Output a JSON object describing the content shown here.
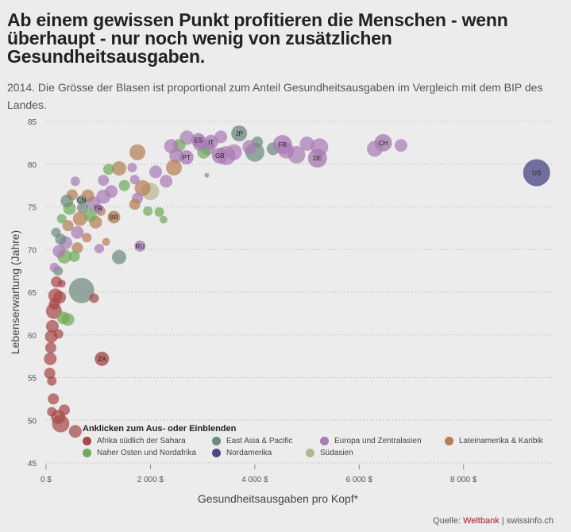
{
  "title": "Ab einem gewissen Punkt profitieren die Menschen - wenn überhaupt - nur noch wenig von zusätzlichen Gesundheitsausgaben.",
  "subtitle": "2014. Die Grösse der Blasen ist proportional zum Anteil Gesundheitsausgaben im Vergleich mit dem BIP des Landes.",
  "source": {
    "prefix": "Quelle: ",
    "bank": "Weltbank",
    "sep": " | ",
    "site": "swissinfo.ch"
  },
  "legend": {
    "title": "Anklicken zum Aus- oder Einblenden",
    "items": [
      {
        "label": "Afrika südlich der Sahara",
        "color": "#a84848"
      },
      {
        "label": "East Asia & Pacific",
        "color": "#6f8a80"
      },
      {
        "label": "Europa und Zentralasien",
        "color": "#a97cb4"
      },
      {
        "label": "Lateinamerika & Karibik",
        "color": "#b47f55"
      },
      {
        "label": "Naher Osten und Nordafrika",
        "color": "#6fab5a"
      },
      {
        "label": "Nordamerika",
        "color": "#4c4a86"
      },
      {
        "label": "Südasien",
        "color": "#b8b690"
      }
    ]
  },
  "chart_data": {
    "type": "scatter",
    "xlabel": "Gesundheitsausgaben pro Kopf*",
    "ylabel": "Lebenserwartung (Jahre)",
    "xlim": [
      0,
      9800
    ],
    "ylim": [
      45,
      85
    ],
    "xticks": [
      0,
      2000,
      4000,
      6000,
      8000
    ],
    "xtick_labels": [
      "0 $",
      "2 000 $",
      "4 000 $",
      "6 000 $",
      "8 000 $"
    ],
    "yticks": [
      45,
      50,
      55,
      60,
      65,
      70,
      75,
      80,
      85
    ],
    "grid": "horizontal dotted",
    "labeled_points": [
      {
        "label": "US",
        "x": 9400,
        "y": 79,
        "r": 17,
        "group": 5
      },
      {
        "label": "CH",
        "x": 6460,
        "y": 82.5,
        "r": 11,
        "group": 2
      },
      {
        "label": "DE",
        "x": 5200,
        "y": 80.7,
        "r": 12,
        "group": 2
      },
      {
        "label": "FR",
        "x": 4530,
        "y": 82.3,
        "r": 12,
        "group": 2
      },
      {
        "label": "JP",
        "x": 3700,
        "y": 83.6,
        "r": 10,
        "group": 1
      },
      {
        "label": "GB",
        "x": 3330,
        "y": 81.0,
        "r": 10,
        "group": 2
      },
      {
        "label": "IT",
        "x": 3160,
        "y": 82.6,
        "r": 9,
        "group": 2
      },
      {
        "label": "ES",
        "x": 2920,
        "y": 82.8,
        "r": 9,
        "group": 2
      },
      {
        "label": "PT",
        "x": 2690,
        "y": 80.8,
        "r": 9,
        "group": 2
      },
      {
        "label": "RU",
        "x": 1800,
        "y": 70.4,
        "r": 7,
        "group": 2
      },
      {
        "label": "TR",
        "x": 1000,
        "y": 74.8,
        "r": 6,
        "group": 2
      },
      {
        "label": "BR",
        "x": 1300,
        "y": 73.8,
        "r": 8,
        "group": 3
      },
      {
        "label": "CN",
        "x": 680,
        "y": 75.8,
        "r": 6,
        "group": 1
      },
      {
        "label": "ZA",
        "x": 1070,
        "y": 57.2,
        "r": 9,
        "group": 0
      }
    ],
    "points": [
      {
        "x": 6800,
        "y": 82.2,
        "r": 8,
        "group": 2
      },
      {
        "x": 6300,
        "y": 81.8,
        "r": 10,
        "group": 2
      },
      {
        "x": 5240,
        "y": 82.0,
        "r": 11,
        "group": 2
      },
      {
        "x": 5000,
        "y": 82.4,
        "r": 9,
        "group": 2
      },
      {
        "x": 4800,
        "y": 81.1,
        "r": 11,
        "group": 2
      },
      {
        "x": 4600,
        "y": 81.6,
        "r": 10,
        "group": 2
      },
      {
        "x": 4350,
        "y": 81.8,
        "r": 8,
        "group": 1
      },
      {
        "x": 4000,
        "y": 81.4,
        "r": 12,
        "group": 1
      },
      {
        "x": 4050,
        "y": 82.6,
        "r": 7,
        "group": 1
      },
      {
        "x": 3900,
        "y": 82.0,
        "r": 9,
        "group": 2
      },
      {
        "x": 3600,
        "y": 81.4,
        "r": 10,
        "group": 2
      },
      {
        "x": 3450,
        "y": 81.0,
        "r": 12,
        "group": 2
      },
      {
        "x": 3350,
        "y": 83.2,
        "r": 8,
        "group": 2
      },
      {
        "x": 3100,
        "y": 81.9,
        "r": 9,
        "group": 2
      },
      {
        "x": 3020,
        "y": 81.4,
        "r": 8,
        "group": 4
      },
      {
        "x": 2950,
        "y": 82.4,
        "r": 9,
        "group": 2
      },
      {
        "x": 2700,
        "y": 83.1,
        "r": 9,
        "group": 2
      },
      {
        "x": 2550,
        "y": 82.2,
        "r": 8,
        "group": 4
      },
      {
        "x": 2500,
        "y": 81.0,
        "r": 9,
        "group": 2
      },
      {
        "x": 2400,
        "y": 82.1,
        "r": 9,
        "group": 2
      },
      {
        "x": 2450,
        "y": 79.6,
        "r": 10,
        "group": 3
      },
      {
        "x": 2300,
        "y": 78.0,
        "r": 8,
        "group": 2
      },
      {
        "x": 2100,
        "y": 79.1,
        "r": 8,
        "group": 2
      },
      {
        "x": 2000,
        "y": 76.8,
        "r": 11,
        "group": 6
      },
      {
        "x": 1850,
        "y": 77.2,
        "r": 10,
        "group": 3
      },
      {
        "x": 1700,
        "y": 78.2,
        "r": 6,
        "group": 2
      },
      {
        "x": 1750,
        "y": 76.0,
        "r": 7,
        "group": 2
      },
      {
        "x": 1700,
        "y": 75.3,
        "r": 7,
        "group": 3
      },
      {
        "x": 1750,
        "y": 81.4,
        "r": 10,
        "group": 3
      },
      {
        "x": 1650,
        "y": 79.6,
        "r": 6,
        "group": 2
      },
      {
        "x": 1500,
        "y": 77.5,
        "r": 7,
        "group": 4
      },
      {
        "x": 1400,
        "y": 79.5,
        "r": 9,
        "group": 3
      },
      {
        "x": 1250,
        "y": 76.8,
        "r": 8,
        "group": 2
      },
      {
        "x": 1200,
        "y": 79.4,
        "r": 7,
        "group": 4
      },
      {
        "x": 1100,
        "y": 78.1,
        "r": 7,
        "group": 2
      },
      {
        "x": 1100,
        "y": 76.2,
        "r": 9,
        "group": 2
      },
      {
        "x": 1050,
        "y": 74.5,
        "r": 6,
        "group": 3
      },
      {
        "x": 950,
        "y": 73.2,
        "r": 8,
        "group": 3
      },
      {
        "x": 900,
        "y": 75.4,
        "r": 9,
        "group": 2
      },
      {
        "x": 850,
        "y": 74.0,
        "r": 8,
        "group": 4
      },
      {
        "x": 800,
        "y": 76.3,
        "r": 8,
        "group": 3
      },
      {
        "x": 780,
        "y": 71.4,
        "r": 6,
        "group": 3
      },
      {
        "x": 700,
        "y": 74.9,
        "r": 7,
        "group": 1
      },
      {
        "x": 650,
        "y": 73.6,
        "r": 9,
        "group": 3
      },
      {
        "x": 600,
        "y": 72.0,
        "r": 8,
        "group": 2
      },
      {
        "x": 600,
        "y": 70.2,
        "r": 7,
        "group": 3
      },
      {
        "x": 560,
        "y": 78.0,
        "r": 6,
        "group": 2
      },
      {
        "x": 500,
        "y": 76.4,
        "r": 7,
        "group": 3
      },
      {
        "x": 450,
        "y": 74.8,
        "r": 8,
        "group": 4
      },
      {
        "x": 400,
        "y": 75.7,
        "r": 8,
        "group": 1
      },
      {
        "x": 420,
        "y": 72.8,
        "r": 7,
        "group": 3
      },
      {
        "x": 380,
        "y": 70.8,
        "r": 8,
        "group": 2
      },
      {
        "x": 350,
        "y": 69.2,
        "r": 9,
        "group": 4
      },
      {
        "x": 300,
        "y": 73.6,
        "r": 6,
        "group": 4
      },
      {
        "x": 280,
        "y": 71.2,
        "r": 7,
        "group": 1
      },
      {
        "x": 250,
        "y": 69.8,
        "r": 8,
        "group": 2
      },
      {
        "x": 230,
        "y": 67.5,
        "r": 6,
        "group": 1
      },
      {
        "x": 200,
        "y": 66.2,
        "r": 7,
        "group": 0
      },
      {
        "x": 180,
        "y": 64.6,
        "r": 9,
        "group": 0
      },
      {
        "x": 150,
        "y": 62.8,
        "r": 10,
        "group": 0
      },
      {
        "x": 120,
        "y": 61.0,
        "r": 8,
        "group": 0
      },
      {
        "x": 100,
        "y": 59.8,
        "r": 8,
        "group": 0
      },
      {
        "x": 90,
        "y": 58.5,
        "r": 7,
        "group": 0
      },
      {
        "x": 80,
        "y": 57.2,
        "r": 8,
        "group": 0
      },
      {
        "x": 70,
        "y": 55.5,
        "r": 7,
        "group": 0
      },
      {
        "x": 110,
        "y": 54.6,
        "r": 6,
        "group": 0
      },
      {
        "x": 140,
        "y": 52.5,
        "r": 7,
        "group": 0
      },
      {
        "x": 110,
        "y": 51.0,
        "r": 6,
        "group": 0
      },
      {
        "x": 230,
        "y": 50.4,
        "r": 9,
        "group": 0
      },
      {
        "x": 280,
        "y": 49.6,
        "r": 11,
        "group": 0
      },
      {
        "x": 350,
        "y": 51.2,
        "r": 7,
        "group": 0
      },
      {
        "x": 560,
        "y": 48.7,
        "r": 8,
        "group": 0
      },
      {
        "x": 160,
        "y": 63.6,
        "r": 7,
        "group": 0
      },
      {
        "x": 260,
        "y": 64.4,
        "r": 8,
        "group": 0
      },
      {
        "x": 330,
        "y": 62.0,
        "r": 8,
        "group": 4
      },
      {
        "x": 420,
        "y": 61.8,
        "r": 8,
        "group": 4
      },
      {
        "x": 680,
        "y": 65.2,
        "r": 16,
        "group": 1
      },
      {
        "x": 920,
        "y": 64.3,
        "r": 6,
        "group": 0
      },
      {
        "x": 1400,
        "y": 69.1,
        "r": 9,
        "group": 1
      },
      {
        "x": 1020,
        "y": 70.1,
        "r": 6,
        "group": 2
      },
      {
        "x": 1150,
        "y": 70.9,
        "r": 5,
        "group": 3
      },
      {
        "x": 160,
        "y": 67.9,
        "r": 6,
        "group": 2
      },
      {
        "x": 190,
        "y": 72.0,
        "r": 6,
        "group": 1
      },
      {
        "x": 540,
        "y": 69.2,
        "r": 7,
        "group": 4
      },
      {
        "x": 300,
        "y": 66.0,
        "r": 5,
        "group": 0
      },
      {
        "x": 240,
        "y": 60.1,
        "r": 6,
        "group": 0
      },
      {
        "x": 1950,
        "y": 74.5,
        "r": 6,
        "group": 4
      },
      {
        "x": 2170,
        "y": 74.4,
        "r": 6,
        "group": 4
      },
      {
        "x": 2250,
        "y": 73.5,
        "r": 5,
        "group": 4
      },
      {
        "x": 3080,
        "y": 78.7,
        "r": 3,
        "group": 4
      }
    ]
  }
}
